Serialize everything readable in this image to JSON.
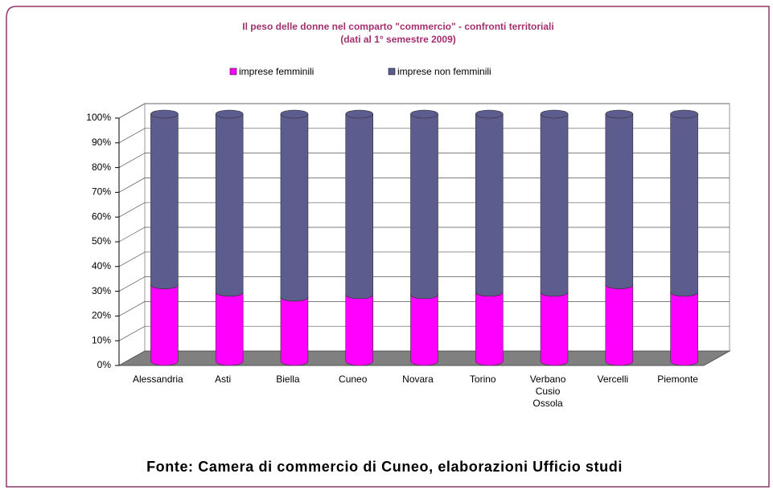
{
  "chart_data": {
    "type": "bar3d_stacked",
    "title": "Il peso delle donne nel comparto \"commercio\" - confronti territoriali",
    "subtitle": "(dati al 1° semestre 2009)",
    "categories": [
      "Alessandria",
      "Asti",
      "Biella",
      "Cuneo",
      "Novara",
      "Torino",
      "Verbano Cusio Ossola",
      "Vercelli",
      "Piemonte"
    ],
    "series": [
      {
        "name": "imprese femminili",
        "color": "#ff00ff",
        "values": [
          31,
          28,
          26,
          27,
          27,
          28,
          28,
          31,
          28
        ]
      },
      {
        "name": "imprese non femminili",
        "color": "#5c5c8e",
        "values": [
          69,
          72,
          74,
          73,
          73,
          72,
          72,
          69,
          72
        ]
      }
    ],
    "ylim": [
      0,
      100
    ],
    "yticks": [
      {
        "value": 0,
        "label": "0%"
      },
      {
        "value": 10,
        "label": "10%"
      },
      {
        "value": 20,
        "label": "20%"
      },
      {
        "value": 30,
        "label": "30%"
      },
      {
        "value": 40,
        "label": "40%"
      },
      {
        "value": 50,
        "label": "50%"
      },
      {
        "value": 60,
        "label": "60%"
      },
      {
        "value": 70,
        "label": "70%"
      },
      {
        "value": 80,
        "label": "80%"
      },
      {
        "value": 90,
        "label": "90%"
      },
      {
        "value": 100,
        "label": "100%"
      }
    ],
    "grid": true,
    "legend": "top",
    "source": "Fonte: Camera di commercio di Cuneo, elaborazioni Ufficio studi"
  }
}
